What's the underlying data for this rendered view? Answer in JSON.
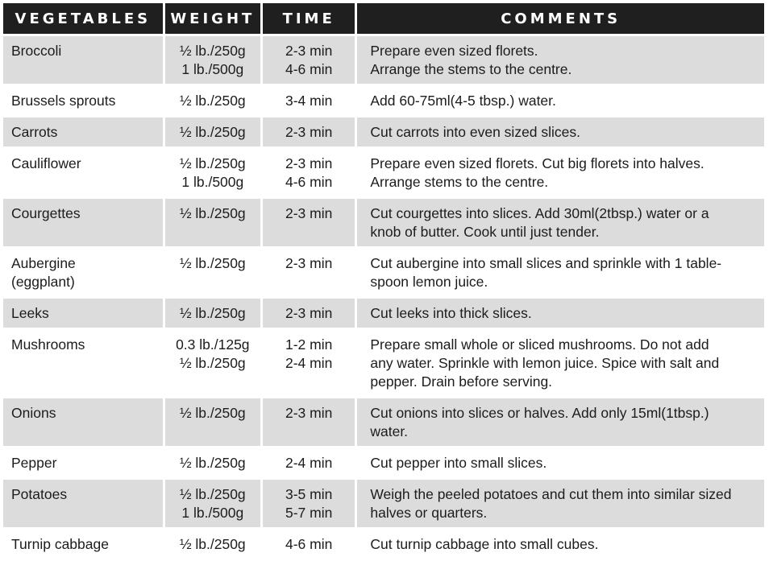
{
  "headers": {
    "vegetables": "VEGETABLES",
    "weight": "WEIGHT",
    "time": "TIME",
    "comments": "COMMENTS"
  },
  "rows": [
    {
      "vegetable": [
        "Broccoli"
      ],
      "weight": [
        "½ lb./250g",
        "1 lb./500g"
      ],
      "time": [
        "2-3 min",
        "4-6 min"
      ],
      "comment": [
        "Prepare even sized florets.",
        "Arrange the stems to the centre."
      ]
    },
    {
      "vegetable": [
        "Brussels sprouts"
      ],
      "weight": [
        "½ lb./250g"
      ],
      "time": [
        "3-4 min"
      ],
      "comment": [
        "Add 60-75ml(4-5 tbsp.) water."
      ]
    },
    {
      "vegetable": [
        "Carrots"
      ],
      "weight": [
        "½ lb./250g"
      ],
      "time": [
        "2-3 min"
      ],
      "comment": [
        "Cut carrots into even sized slices."
      ]
    },
    {
      "vegetable": [
        "Cauliflower"
      ],
      "weight": [
        "½ lb./250g",
        "1 lb./500g"
      ],
      "time": [
        "2-3 min",
        "4-6 min"
      ],
      "comment": [
        "Prepare even sized florets. Cut big florets into halves.",
        "Arrange stems to the centre."
      ]
    },
    {
      "vegetable": [
        "Courgettes"
      ],
      "weight": [
        "½ lb./250g"
      ],
      "time": [
        "2-3 min"
      ],
      "comment": [
        "Cut courgettes into slices. Add 30ml(2tbsp.) water or a",
        "knob of butter. Cook until just tender."
      ]
    },
    {
      "vegetable": [
        "Aubergine",
        "(eggplant)"
      ],
      "weight": [
        "½ lb./250g"
      ],
      "time": [
        "2-3 min"
      ],
      "comment": [
        "Cut aubergine into small slices and sprinkle with 1 table-",
        "spoon lemon juice."
      ]
    },
    {
      "vegetable": [
        "Leeks"
      ],
      "weight": [
        "½ lb./250g"
      ],
      "time": [
        "2-3 min"
      ],
      "comment": [
        "Cut leeks into thick slices."
      ]
    },
    {
      "vegetable": [
        "Mushrooms"
      ],
      "weight": [
        "0.3 lb./125g",
        "½ lb./250g"
      ],
      "time": [
        "1-2 min",
        "2-4 min"
      ],
      "comment": [
        "Prepare small whole or sliced mushrooms. Do not add",
        "any water. Sprinkle with lemon juice. Spice with salt and",
        "pepper. Drain before serving."
      ]
    },
    {
      "vegetable": [
        "Onions"
      ],
      "weight": [
        "½ lb./250g"
      ],
      "time": [
        "2-3 min"
      ],
      "comment": [
        "Cut onions into slices or halves. Add only 15ml(1tbsp.)",
        "water."
      ]
    },
    {
      "vegetable": [
        "Pepper"
      ],
      "weight": [
        "½ lb./250g"
      ],
      "time": [
        "2-4 min"
      ],
      "comment": [
        "Cut pepper into small slices."
      ]
    },
    {
      "vegetable": [
        "Potatoes"
      ],
      "weight": [
        "½ lb./250g",
        "1 lb./500g"
      ],
      "time": [
        "3-5 min",
        "5-7 min"
      ],
      "comment": [
        "Weigh the peeled potatoes and cut them into similar sized",
        "halves or quarters."
      ]
    },
    {
      "vegetable": [
        "Turnip cabbage"
      ],
      "weight": [
        "½ lb./250g"
      ],
      "time": [
        "4-6 min"
      ],
      "comment": [
        "Cut turnip cabbage into small cubes."
      ]
    }
  ]
}
